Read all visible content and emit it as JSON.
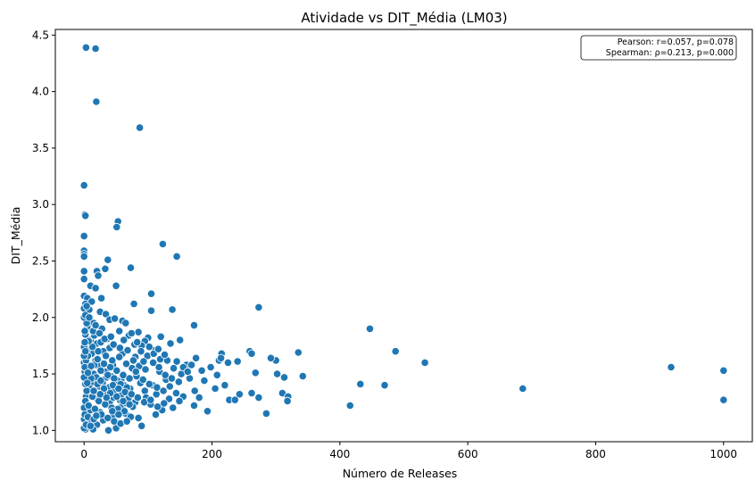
{
  "chart_data": {
    "type": "scatter",
    "title": "Atividade vs DIT_Média (LM03)",
    "xlabel": "Número de Releases",
    "ylabel": "DIT_Média",
    "xlim": [
      -45,
      1045
    ],
    "ylim": [
      0.9,
      4.55
    ],
    "xticks": [
      0,
      200,
      400,
      600,
      800,
      1000
    ],
    "yticks": [
      1.0,
      1.5,
      2.0,
      2.5,
      3.0,
      3.5,
      4.0,
      4.5
    ],
    "grid": false,
    "marker_color": "#1f77b4",
    "annotation": {
      "lines": [
        "Pearson: r=0.057, p=0.078",
        "Spearman: ρ=0.213, p=0.000"
      ],
      "placement": "top-right"
    },
    "points": [
      [
        3,
        4.39
      ],
      [
        18,
        4.38
      ],
      [
        19,
        3.91
      ],
      [
        87,
        3.68
      ],
      [
        0,
        3.17
      ],
      [
        1,
        2.91
      ],
      [
        2,
        2.9
      ],
      [
        53,
        2.85
      ],
      [
        51,
        2.8
      ],
      [
        0,
        2.72
      ],
      [
        0,
        2.59
      ],
      [
        0,
        2.56
      ],
      [
        0,
        2.54
      ],
      [
        123,
        2.65
      ],
      [
        145,
        2.54
      ],
      [
        37,
        2.51
      ],
      [
        73,
        2.44
      ],
      [
        33,
        2.43
      ],
      [
        0,
        2.41
      ],
      [
        20,
        2.41
      ],
      [
        22,
        2.37
      ],
      [
        0,
        2.34
      ],
      [
        10,
        2.28
      ],
      [
        50,
        2.28
      ],
      [
        18,
        2.26
      ],
      [
        105,
        2.21
      ],
      [
        0,
        2.19
      ],
      [
        5,
        2.17
      ],
      [
        27,
        2.17
      ],
      [
        2,
        2.12
      ],
      [
        12,
        2.14
      ],
      [
        78,
        2.12
      ],
      [
        138,
        2.07
      ],
      [
        273,
        2.09
      ],
      [
        105,
        2.06
      ],
      [
        0,
        2.08
      ],
      [
        8,
        2.07
      ],
      [
        25,
        2.05
      ],
      [
        34,
        2.03
      ],
      [
        40,
        1.98
      ],
      [
        48,
        1.99
      ],
      [
        60,
        1.97
      ],
      [
        3,
        1.98
      ],
      [
        15,
        1.95
      ],
      [
        65,
        1.95
      ],
      [
        172,
        1.93
      ],
      [
        447,
        1.9
      ],
      [
        5,
        1.92
      ],
      [
        28,
        1.9
      ],
      [
        55,
        1.88
      ],
      [
        85,
        1.87
      ],
      [
        70,
        1.84
      ],
      [
        100,
        1.82
      ],
      [
        120,
        1.83
      ],
      [
        150,
        1.8
      ],
      [
        95,
        1.79
      ],
      [
        135,
        1.77
      ],
      [
        487,
        1.7
      ],
      [
        335,
        1.69
      ],
      [
        259,
        1.7
      ],
      [
        215,
        1.68
      ],
      [
        262,
        1.68
      ],
      [
        175,
        1.64
      ],
      [
        110,
        1.71
      ],
      [
        90,
        1.75
      ],
      [
        40,
        1.73
      ],
      [
        20,
        1.77
      ],
      [
        10,
        1.8
      ],
      [
        2,
        1.85
      ],
      [
        30,
        1.7
      ],
      [
        60,
        1.68
      ],
      [
        80,
        1.65
      ],
      [
        130,
        1.62
      ],
      [
        160,
        1.58
      ],
      [
        198,
        1.56
      ],
      [
        225,
        1.6
      ],
      [
        240,
        1.61
      ],
      [
        300,
        1.62
      ],
      [
        292,
        1.64
      ],
      [
        533,
        1.6
      ],
      [
        211,
        1.62
      ],
      [
        214,
        1.64
      ],
      [
        184,
        1.53
      ],
      [
        168,
        1.58
      ],
      [
        208,
        1.49
      ],
      [
        152,
        1.5
      ],
      [
        140,
        1.55
      ],
      [
        118,
        1.52
      ],
      [
        75,
        1.55
      ],
      [
        45,
        1.58
      ],
      [
        25,
        1.6
      ],
      [
        0,
        1.6
      ],
      [
        918,
        1.56
      ],
      [
        1000,
        1.53
      ],
      [
        342,
        1.48
      ],
      [
        313,
        1.47
      ],
      [
        302,
        1.5
      ],
      [
        268,
        1.51
      ],
      [
        165,
        1.46
      ],
      [
        148,
        1.43
      ],
      [
        128,
        1.45
      ],
      [
        107,
        1.4
      ],
      [
        88,
        1.42
      ],
      [
        58,
        1.45
      ],
      [
        35,
        1.47
      ],
      [
        15,
        1.5
      ],
      [
        5,
        1.45
      ],
      [
        220,
        1.4
      ],
      [
        432,
        1.41
      ],
      [
        470,
        1.4
      ],
      [
        686,
        1.37
      ],
      [
        173,
        1.35
      ],
      [
        310,
        1.33
      ],
      [
        319,
        1.3
      ],
      [
        273,
        1.29
      ],
      [
        262,
        1.33
      ],
      [
        243,
        1.32
      ],
      [
        227,
        1.27
      ],
      [
        180,
        1.29
      ],
      [
        155,
        1.3
      ],
      [
        133,
        1.28
      ],
      [
        113,
        1.32
      ],
      [
        95,
        1.35
      ],
      [
        70,
        1.3
      ],
      [
        48,
        1.33
      ],
      [
        28,
        1.36
      ],
      [
        8,
        1.38
      ],
      [
        1000,
        1.27
      ],
      [
        318,
        1.26
      ],
      [
        236,
        1.27
      ],
      [
        149,
        1.26
      ],
      [
        172,
        1.22
      ],
      [
        104,
        1.23
      ],
      [
        80,
        1.25
      ],
      [
        60,
        1.22
      ],
      [
        40,
        1.25
      ],
      [
        20,
        1.28
      ],
      [
        3,
        1.3
      ],
      [
        416,
        1.22
      ],
      [
        122,
        1.18
      ],
      [
        193,
        1.17
      ],
      [
        285,
        1.15
      ],
      [
        112,
        1.14
      ],
      [
        85,
        1.11
      ],
      [
        65,
        1.15
      ],
      [
        45,
        1.13
      ],
      [
        25,
        1.16
      ],
      [
        10,
        1.18
      ],
      [
        0,
        1.2
      ],
      [
        90,
        1.04
      ],
      [
        50,
        1.02
      ],
      [
        38,
        1.0
      ],
      [
        20,
        1.05
      ],
      [
        8,
        1.07
      ],
      [
        2,
        1.01
      ],
      [
        14,
        1.01
      ],
      [
        30,
        1.09
      ],
      [
        12,
        1.68
      ],
      [
        18,
        1.62
      ],
      [
        23,
        1.57
      ],
      [
        33,
        1.52
      ],
      [
        42,
        1.48
      ],
      [
        52,
        1.44
      ],
      [
        62,
        1.4
      ],
      [
        72,
        1.37
      ],
      [
        5,
        1.72
      ],
      [
        14,
        1.43
      ],
      [
        24,
        1.39
      ],
      [
        36,
        1.34
      ],
      [
        46,
        1.29
      ],
      [
        56,
        1.27
      ],
      [
        66,
        1.24
      ],
      [
        76,
        1.21
      ],
      [
        3,
        1.62
      ],
      [
        9,
        1.55
      ],
      [
        19,
        1.47
      ],
      [
        29,
        1.42
      ],
      [
        39,
        1.38
      ],
      [
        49,
        1.36
      ],
      [
        59,
        1.32
      ],
      [
        69,
        1.28
      ],
      [
        0,
        1.74
      ],
      [
        6,
        1.66
      ],
      [
        16,
        1.58
      ],
      [
        26,
        1.53
      ],
      [
        37,
        1.49
      ],
      [
        47,
        1.46
      ],
      [
        57,
        1.41
      ],
      [
        67,
        1.38
      ],
      [
        1,
        1.52
      ],
      [
        11,
        1.46
      ],
      [
        21,
        1.41
      ],
      [
        31,
        1.37
      ],
      [
        41,
        1.33
      ],
      [
        51,
        1.3
      ],
      [
        61,
        1.26
      ],
      [
        71,
        1.23
      ],
      [
        4,
        1.35
      ],
      [
        13,
        1.3
      ],
      [
        23,
        1.26
      ],
      [
        33,
        1.23
      ],
      [
        43,
        1.2
      ],
      [
        53,
        1.19
      ],
      [
        63,
        1.17
      ],
      [
        73,
        1.12
      ],
      [
        2,
        1.26
      ],
      [
        7,
        1.22
      ],
      [
        17,
        1.19
      ],
      [
        27,
        1.14
      ],
      [
        37,
        1.11
      ],
      [
        47,
        1.08
      ],
      [
        57,
        1.06
      ],
      [
        67,
        1.08
      ],
      [
        82,
        1.48
      ],
      [
        92,
        1.45
      ],
      [
        102,
        1.41
      ],
      [
        114,
        1.38
      ],
      [
        124,
        1.35
      ],
      [
        134,
        1.39
      ],
      [
        144,
        1.33
      ],
      [
        97,
        1.29
      ],
      [
        86,
        1.57
      ],
      [
        96,
        1.54
      ],
      [
        108,
        1.6
      ],
      [
        117,
        1.56
      ],
      [
        127,
        1.49
      ],
      [
        137,
        1.46
      ],
      [
        77,
        1.62
      ],
      [
        66,
        1.59
      ],
      [
        55,
        1.65
      ],
      [
        44,
        1.62
      ],
      [
        34,
        1.66
      ],
      [
        22,
        1.7
      ],
      [
        13,
        1.74
      ],
      [
        7,
        1.79
      ],
      [
        1,
        1.88
      ],
      [
        4,
        1.95
      ],
      [
        16,
        1.84
      ],
      [
        26,
        1.78
      ],
      [
        36,
        1.81
      ],
      [
        46,
        1.76
      ],
      [
        56,
        1.73
      ],
      [
        68,
        1.71
      ],
      [
        79,
        1.76
      ],
      [
        89,
        1.7
      ],
      [
        99,
        1.66
      ],
      [
        109,
        1.68
      ],
      [
        119,
        1.63
      ],
      [
        145,
        1.61
      ],
      [
        155,
        1.56
      ],
      [
        162,
        1.52
      ],
      [
        188,
        1.44
      ],
      [
        205,
        1.37
      ],
      [
        0,
        1.1
      ],
      [
        0,
        1.02
      ],
      [
        1,
        1.14
      ],
      [
        3,
        1.05
      ],
      [
        6,
        1.12
      ],
      [
        10,
        1.04
      ],
      [
        15,
        1.1
      ],
      [
        19,
        1.13
      ],
      [
        2,
        1.41
      ],
      [
        0,
        1.47
      ],
      [
        1,
        1.56
      ],
      [
        0,
        1.66
      ],
      [
        2,
        1.7
      ],
      [
        1,
        1.78
      ],
      [
        0,
        2.0
      ],
      [
        2,
        2.02
      ],
      [
        8,
        2.0
      ],
      [
        4,
        2.1
      ],
      [
        14,
        1.88
      ],
      [
        18,
        1.93
      ],
      [
        24,
        1.86
      ],
      [
        32,
        1.81
      ],
      [
        42,
        1.83
      ],
      [
        62,
        1.8
      ],
      [
        74,
        1.86
      ],
      [
        83,
        1.78
      ],
      [
        102,
        1.74
      ],
      [
        116,
        1.72
      ],
      [
        126,
        1.67
      ],
      [
        93,
        1.61
      ],
      [
        81,
        1.52
      ],
      [
        71,
        1.46
      ],
      [
        61,
        1.49
      ],
      [
        51,
        1.53
      ],
      [
        41,
        1.56
      ],
      [
        31,
        1.59
      ],
      [
        21,
        1.63
      ],
      [
        11,
        1.57
      ],
      [
        6,
        1.51
      ],
      [
        26,
        1.44
      ],
      [
        45,
        1.4
      ],
      [
        54,
        1.37
      ],
      [
        64,
        1.34
      ],
      [
        74,
        1.32
      ],
      [
        84,
        1.29
      ],
      [
        94,
        1.25
      ],
      [
        104,
        1.27
      ],
      [
        115,
        1.21
      ],
      [
        125,
        1.24
      ],
      [
        139,
        1.2
      ],
      [
        35,
        1.29
      ],
      [
        25,
        1.32
      ],
      [
        15,
        1.35
      ],
      [
        5,
        1.42
      ],
      [
        44,
        1.17
      ],
      [
        54,
        1.14
      ]
    ]
  }
}
